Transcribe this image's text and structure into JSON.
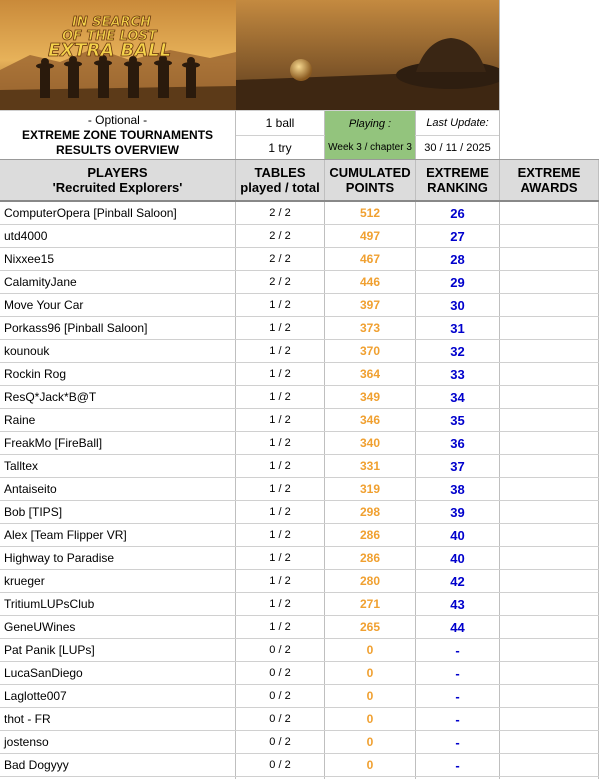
{
  "banner": {
    "line1": "IN SEARCH",
    "line2": "OF THE LOST",
    "line3": "EXTRA BALL"
  },
  "info": {
    "optional": "- Optional -",
    "title1": "EXTREME ZONE TOURNAMENTS",
    "title2": "RESULTS OVERVIEW",
    "ball": "1 ball",
    "try": "1 try",
    "playing_label": "Playing :",
    "playing_value": "Week 3 / chapter 3",
    "update_label": "Last Update:",
    "update_value": "30 / 11 / 2025"
  },
  "colors": {
    "playing_bg": "#93c47d",
    "points": "#f0a030",
    "rank": "#0000cc",
    "header_bg": "#dcdcdc"
  },
  "headers": {
    "players1": "PLAYERS",
    "players2": "'Recruited Explorers'",
    "tables1": "TABLES",
    "tables2": "played / total",
    "points1": "CUMULATED",
    "points2": "POINTS",
    "ranking1": "EXTREME",
    "ranking2": "RANKING",
    "awards1": "EXTREME",
    "awards2": "AWARDS"
  },
  "rows": [
    {
      "name": "ComputerOpera [Pinball Saloon]",
      "tables": "2 / 2",
      "points": "512",
      "rank": "26"
    },
    {
      "name": "utd4000",
      "tables": "2 / 2",
      "points": "497",
      "rank": "27"
    },
    {
      "name": "Nixxee15",
      "tables": "2 / 2",
      "points": "467",
      "rank": "28"
    },
    {
      "name": "CalamityJane",
      "tables": "2 / 2",
      "points": "446",
      "rank": "29"
    },
    {
      "name": "Move Your Car",
      "tables": "1 / 2",
      "points": "397",
      "rank": "30"
    },
    {
      "name": "Porkass96 [Pinball Saloon]",
      "tables": "1 / 2",
      "points": "373",
      "rank": "31"
    },
    {
      "name": "kounouk",
      "tables": "1 / 2",
      "points": "370",
      "rank": "32"
    },
    {
      "name": "Rockin Rog",
      "tables": "1 / 2",
      "points": "364",
      "rank": "33"
    },
    {
      "name": "ResQ*Jack*B@T",
      "tables": "1 / 2",
      "points": "349",
      "rank": "34"
    },
    {
      "name": "Raine",
      "tables": "1 / 2",
      "points": "346",
      "rank": "35"
    },
    {
      "name": "FreakMo [FireBall]",
      "tables": "1 / 2",
      "points": "340",
      "rank": "36"
    },
    {
      "name": "Talltex",
      "tables": "1 / 2",
      "points": "331",
      "rank": "37"
    },
    {
      "name": "Antaiseito",
      "tables": "1 / 2",
      "points": "319",
      "rank": "38"
    },
    {
      "name": "Bob [TIPS]",
      "tables": "1 / 2",
      "points": "298",
      "rank": "39"
    },
    {
      "name": "Alex [Team Flipper VR]",
      "tables": "1 / 2",
      "points": "286",
      "rank": "40"
    },
    {
      "name": "Highway to Paradise",
      "tables": "1 / 2",
      "points": "286",
      "rank": "40"
    },
    {
      "name": "krueger",
      "tables": "1 / 2",
      "points": "280",
      "rank": "42"
    },
    {
      "name": "TritiumLUPsClub",
      "tables": "1 / 2",
      "points": "271",
      "rank": "43"
    },
    {
      "name": "GeneUWines",
      "tables": "1 / 2",
      "points": "265",
      "rank": "44"
    },
    {
      "name": "Pat Panik [LUPs]",
      "tables": "0 / 2",
      "points": "0",
      "rank": "-"
    },
    {
      "name": "LucaSanDiego",
      "tables": "0 / 2",
      "points": "0",
      "rank": "-"
    },
    {
      "name": "Laglotte007",
      "tables": "0 / 2",
      "points": "0",
      "rank": "-"
    },
    {
      "name": "thot - FR",
      "tables": "0 / 2",
      "points": "0",
      "rank": "-"
    },
    {
      "name": "jostenso",
      "tables": "0 / 2",
      "points": "0",
      "rank": "-"
    },
    {
      "name": "Bad Dogyyy",
      "tables": "0 / 2",
      "points": "0",
      "rank": "-"
    }
  ]
}
